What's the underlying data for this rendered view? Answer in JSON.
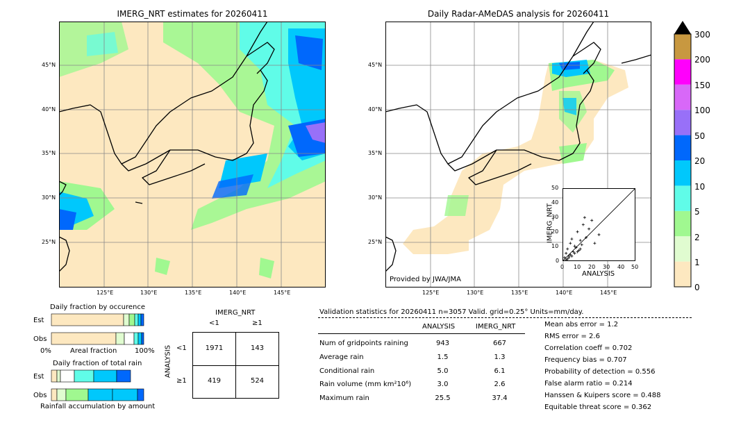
{
  "map_left": {
    "title": "IMERG_NRT estimates for 20260411",
    "lat_labels": [
      "45°N",
      "40°N",
      "35°N",
      "30°N",
      "25°N"
    ],
    "lon_labels": [
      "125°E",
      "130°E",
      "135°E",
      "140°E",
      "145°E"
    ]
  },
  "map_right": {
    "title": "Daily Radar-AMeDAS analysis for 20260411",
    "lat_labels": [
      "45°N",
      "40°N",
      "35°N",
      "30°N",
      "25°N"
    ],
    "lon_labels": [
      "125°E",
      "130°E",
      "135°E",
      "140°E",
      "145°E"
    ],
    "credit": "Provided by JWA/JMA"
  },
  "scatter": {
    "xlabel": "ANALYSIS",
    "ylabel": "IMERG_NRT",
    "ticks": [
      "0",
      "10",
      "20",
      "30",
      "40",
      "50"
    ]
  },
  "colorbar": {
    "labels": [
      "0",
      "1",
      "2",
      "5",
      "10",
      "20",
      "50",
      "100",
      "150",
      "200",
      "300"
    ],
    "colors": [
      "#fde8c0",
      "#e0fcd0",
      "#a0f890",
      "#60fce8",
      "#00c8fc",
      "#0068fc",
      "#9870f8",
      "#d868f8",
      "#ff00fc",
      "#c89840"
    ]
  },
  "occurrence": {
    "title": "Daily fraction by occurence",
    "row_est": "Est",
    "row_obs": "Obs",
    "xlabel": "Areal fraction",
    "x0": "0%",
    "x1": "100%"
  },
  "total_rain": {
    "title": "Daily fraction of total rain",
    "row_est": "Est",
    "row_obs": "Obs",
    "xlabel": "Rainfall accumulation by amount"
  },
  "contingency": {
    "col_header": "IMERG_NRT",
    "col_lt": "<1",
    "col_ge": "≥1",
    "row_header": "ANALYSIS",
    "row_lt": "<1",
    "row_ge": "≥1",
    "c11": "1971",
    "c12": "143",
    "c21": "419",
    "c22": "524"
  },
  "stats": {
    "header": "Validation statistics for 20260411  n=3057 Valid. grid=0.25° Units=mm/day.",
    "col_analysis": "ANALYSIS",
    "col_imerg": "IMERG_NRT",
    "rows": [
      {
        "label": "Num of gridpoints raining",
        "a": "943",
        "b": "667"
      },
      {
        "label": "Average rain",
        "a": "1.5",
        "b": "1.3"
      },
      {
        "label": "Conditional rain",
        "a": "5.0",
        "b": "6.1"
      },
      {
        "label": "Rain volume (mm km²10⁶)",
        "a": "3.0",
        "b": "2.6"
      },
      {
        "label": "Maximum rain",
        "a": "25.5",
        "b": "37.4"
      }
    ],
    "scores": [
      "Mean abs error =    1.2",
      "RMS error =    2.6",
      "Correlation coeff =  0.702",
      "Frequency bias =  0.707",
      "Probability of detection =  0.556",
      "False alarm ratio =  0.214",
      "Hanssen & Kuipers score =  0.488",
      "Equitable threat score =  0.362"
    ]
  },
  "chart_data": {
    "type": "scatter",
    "x": [
      1,
      2,
      3,
      4,
      5,
      6,
      8,
      10,
      12,
      14,
      15,
      18,
      20,
      22,
      25,
      3,
      5,
      7,
      9,
      11,
      13,
      16,
      2,
      4,
      6,
      8,
      10,
      12
    ],
    "y": [
      2,
      5,
      8,
      3,
      12,
      15,
      10,
      20,
      14,
      25,
      30,
      22,
      28,
      12,
      18,
      1,
      4,
      6,
      9,
      7,
      11,
      16,
      0.5,
      2,
      3,
      5,
      6,
      8
    ],
    "xlim": [
      0,
      50
    ],
    "ylim": [
      0,
      50
    ]
  }
}
